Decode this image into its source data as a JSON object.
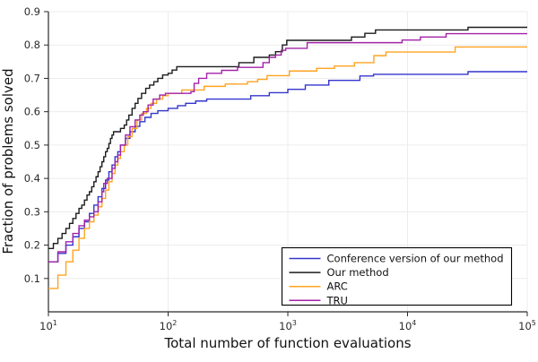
{
  "chart_data": {
    "type": "line",
    "title": "",
    "xlabel": "Total number of function evaluations",
    "ylabel": "Fraction of problems solved",
    "x_scale": "log10",
    "xlim": [
      10,
      100000
    ],
    "ylim": [
      0.0,
      0.9
    ],
    "grid": true,
    "legend_position": "bottom-right",
    "x_ticks": [
      {
        "value": 10,
        "base": "10",
        "exp": "1"
      },
      {
        "value": 100,
        "base": "10",
        "exp": "2"
      },
      {
        "value": 1000,
        "base": "10",
        "exp": "3"
      },
      {
        "value": 10000,
        "base": "10",
        "exp": "4"
      },
      {
        "value": 100000,
        "base": "10",
        "exp": "5"
      }
    ],
    "y_ticks": [
      {
        "value": 0.1,
        "label": "0.1"
      },
      {
        "value": 0.2,
        "label": "0.2"
      },
      {
        "value": 0.3,
        "label": "0.3"
      },
      {
        "value": 0.4,
        "label": "0.4"
      },
      {
        "value": 0.5,
        "label": "0.5"
      },
      {
        "value": 0.6,
        "label": "0.6"
      },
      {
        "value": 0.7,
        "label": "0.7"
      },
      {
        "value": 0.8,
        "label": "0.8"
      },
      {
        "value": 0.9,
        "label": "0.9"
      }
    ],
    "colors": {
      "axis": "#2a2a2a",
      "grid": "#ececec",
      "background": "#ffffff",
      "legend_border": "#000000",
      "legend_background": "#ffffff"
    },
    "series": [
      {
        "name": "Conference version of our method",
        "color": "#3535cd",
        "step": true,
        "points": [
          [
            10,
            0.15
          ],
          [
            12,
            0.175
          ],
          [
            14,
            0.2
          ],
          [
            16,
            0.225
          ],
          [
            18,
            0.25
          ],
          [
            20,
            0.27
          ],
          [
            22,
            0.295
          ],
          [
            24,
            0.32
          ],
          [
            26,
            0.345
          ],
          [
            28,
            0.37
          ],
          [
            30,
            0.395
          ],
          [
            32,
            0.42
          ],
          [
            34,
            0.44
          ],
          [
            36,
            0.465
          ],
          [
            38,
            0.48
          ],
          [
            40,
            0.5
          ],
          [
            44,
            0.52
          ],
          [
            48,
            0.54
          ],
          [
            53,
            0.556
          ],
          [
            58,
            0.57
          ],
          [
            64,
            0.583
          ],
          [
            72,
            0.595
          ],
          [
            82,
            0.603
          ],
          [
            100,
            0.61
          ],
          [
            120,
            0.618
          ],
          [
            140,
            0.625
          ],
          [
            170,
            0.632
          ],
          [
            210,
            0.638
          ],
          [
            490,
            0.648
          ],
          [
            700,
            0.657
          ],
          [
            1000,
            0.667
          ],
          [
            1400,
            0.68
          ],
          [
            2200,
            0.694
          ],
          [
            4000,
            0.707
          ],
          [
            5200,
            0.712
          ],
          [
            32000,
            0.72
          ],
          [
            100000,
            0.72
          ]
        ]
      },
      {
        "name": "Our method",
        "color": "#1c1c1c",
        "step": true,
        "points": [
          [
            10,
            0.19
          ],
          [
            11,
            0.205
          ],
          [
            12,
            0.22
          ],
          [
            13,
            0.235
          ],
          [
            14,
            0.25
          ],
          [
            15,
            0.265
          ],
          [
            16,
            0.28
          ],
          [
            17,
            0.295
          ],
          [
            18,
            0.31
          ],
          [
            19,
            0.32
          ],
          [
            20,
            0.335
          ],
          [
            21,
            0.35
          ],
          [
            22,
            0.36
          ],
          [
            23,
            0.375
          ],
          [
            24,
            0.39
          ],
          [
            25,
            0.405
          ],
          [
            26,
            0.42
          ],
          [
            27,
            0.435
          ],
          [
            28,
            0.45
          ],
          [
            29,
            0.465
          ],
          [
            30,
            0.48
          ],
          [
            31,
            0.49
          ],
          [
            32,
            0.505
          ],
          [
            33,
            0.52
          ],
          [
            34,
            0.53
          ],
          [
            35,
            0.54
          ],
          [
            40,
            0.55
          ],
          [
            43,
            0.56
          ],
          [
            45,
            0.575
          ],
          [
            47,
            0.59
          ],
          [
            50,
            0.61
          ],
          [
            53,
            0.625
          ],
          [
            56,
            0.64
          ],
          [
            60,
            0.655
          ],
          [
            65,
            0.67
          ],
          [
            70,
            0.68
          ],
          [
            76,
            0.69
          ],
          [
            82,
            0.7
          ],
          [
            90,
            0.71
          ],
          [
            100,
            0.715
          ],
          [
            108,
            0.725
          ],
          [
            118,
            0.735
          ],
          [
            390,
            0.747
          ],
          [
            520,
            0.763
          ],
          [
            700,
            0.77
          ],
          [
            790,
            0.78
          ],
          [
            900,
            0.8
          ],
          [
            980,
            0.814
          ],
          [
            3400,
            0.824
          ],
          [
            4400,
            0.835
          ],
          [
            5400,
            0.845
          ],
          [
            32000,
            0.853
          ],
          [
            100000,
            0.853
          ]
        ]
      },
      {
        "name": "ARC",
        "color": "#ffa320",
        "step": true,
        "points": [
          [
            10,
            0.07
          ],
          [
            12,
            0.11
          ],
          [
            14,
            0.15
          ],
          [
            16,
            0.185
          ],
          [
            18,
            0.22
          ],
          [
            20,
            0.25
          ],
          [
            22,
            0.27
          ],
          [
            24,
            0.29
          ],
          [
            26,
            0.315
          ],
          [
            28,
            0.34
          ],
          [
            30,
            0.365
          ],
          [
            32,
            0.39
          ],
          [
            34,
            0.415
          ],
          [
            36,
            0.44
          ],
          [
            38,
            0.46
          ],
          [
            40,
            0.48
          ],
          [
            43,
            0.5
          ],
          [
            46,
            0.525
          ],
          [
            50,
            0.55
          ],
          [
            55,
            0.575
          ],
          [
            60,
            0.595
          ],
          [
            66,
            0.61
          ],
          [
            72,
            0.625
          ],
          [
            80,
            0.638
          ],
          [
            90,
            0.648
          ],
          [
            100,
            0.655
          ],
          [
            130,
            0.665
          ],
          [
            200,
            0.676
          ],
          [
            300,
            0.683
          ],
          [
            460,
            0.69
          ],
          [
            560,
            0.697
          ],
          [
            670,
            0.708
          ],
          [
            1030,
            0.722
          ],
          [
            1740,
            0.73
          ],
          [
            2450,
            0.737
          ],
          [
            3600,
            0.747
          ],
          [
            5230,
            0.768
          ],
          [
            6600,
            0.779
          ],
          [
            25000,
            0.794
          ],
          [
            100000,
            0.794
          ]
        ]
      },
      {
        "name": "TRU",
        "color": "#a222a8",
        "step": true,
        "points": [
          [
            10,
            0.15
          ],
          [
            12,
            0.18
          ],
          [
            14,
            0.21
          ],
          [
            16,
            0.235
          ],
          [
            18,
            0.258
          ],
          [
            20,
            0.275
          ],
          [
            22,
            0.285
          ],
          [
            24,
            0.3
          ],
          [
            26,
            0.33
          ],
          [
            28,
            0.36
          ],
          [
            29,
            0.385
          ],
          [
            31,
            0.4
          ],
          [
            34,
            0.43
          ],
          [
            36,
            0.45
          ],
          [
            38,
            0.47
          ],
          [
            40,
            0.5
          ],
          [
            44,
            0.53
          ],
          [
            48,
            0.555
          ],
          [
            53,
            0.575
          ],
          [
            58,
            0.59
          ],
          [
            62,
            0.6
          ],
          [
            68,
            0.62
          ],
          [
            75,
            0.638
          ],
          [
            85,
            0.65
          ],
          [
            95,
            0.655
          ],
          [
            155,
            0.66
          ],
          [
            165,
            0.685
          ],
          [
            180,
            0.7
          ],
          [
            210,
            0.715
          ],
          [
            280,
            0.724
          ],
          [
            380,
            0.733
          ],
          [
            620,
            0.747
          ],
          [
            700,
            0.763
          ],
          [
            790,
            0.77
          ],
          [
            880,
            0.784
          ],
          [
            960,
            0.79
          ],
          [
            1450,
            0.807
          ],
          [
            9000,
            0.815
          ],
          [
            12800,
            0.824
          ],
          [
            21000,
            0.834
          ],
          [
            100000,
            0.834
          ]
        ]
      }
    ]
  }
}
